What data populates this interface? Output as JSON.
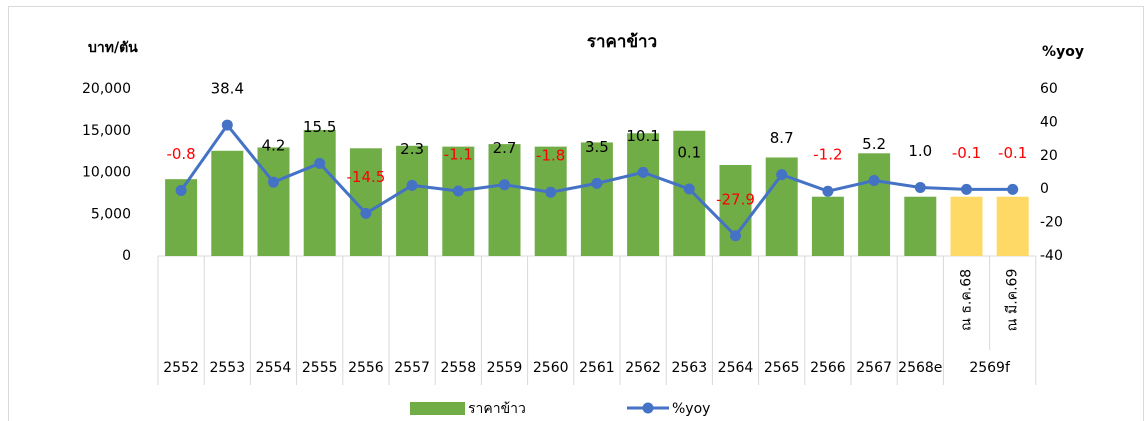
{
  "chart_data": {
    "type": "bar-line",
    "title": "ราคาข้าว",
    "y_label": "บาท/ตัน",
    "y2_label": "%yoy",
    "categories": [
      "2552",
      "2553",
      "2554",
      "2555",
      "2556",
      "2557",
      "2558",
      "2559",
      "2560",
      "2561",
      "2562",
      "2563",
      "2564",
      "2565",
      "2566",
      "2567",
      "2568e",
      "2569f",
      null
    ],
    "inner_categories": [
      null,
      null,
      null,
      null,
      null,
      null,
      null,
      null,
      null,
      null,
      null,
      null,
      null,
      null,
      null,
      null,
      null,
      "ณ ธ.ค.68",
      "ณ มี.ค.69"
    ],
    "ylim": [
      0,
      20000
    ],
    "yticks": [
      0,
      {
        "value": 5000,
        "label": "5,000"
      },
      {
        "value": 10000,
        "label": "10,000"
      },
      {
        "value": 15000,
        "label": "15,000"
      },
      {
        "value": 20000,
        "label": "20,000"
      }
    ],
    "y2lim": [
      -40,
      60
    ],
    "y2ticks": [
      -40,
      -20,
      0,
      20,
      40,
      60
    ],
    "legend": "bottom",
    "series": [
      {
        "name": "ราคาข้าว",
        "type": "bar",
        "color": "#70ad47",
        "colors": [
          "#70ad47",
          "#70ad47",
          "#70ad47",
          "#70ad47",
          "#70ad47",
          "#70ad47",
          "#70ad47",
          "#70ad47",
          "#70ad47",
          "#70ad47",
          "#70ad47",
          "#70ad47",
          "#70ad47",
          "#70ad47",
          "#70ad47",
          "#70ad47",
          "#70ad47",
          "#ffd966",
          "#ffd966"
        ],
        "values": [
          9200,
          12600,
          13000,
          15100,
          12900,
          13200,
          13100,
          13400,
          13100,
          13600,
          14700,
          15000,
          10900,
          11800,
          7100,
          12300,
          7100,
          7100,
          7100
        ]
      },
      {
        "name": "%yoy",
        "type": "line",
        "axis": "y2",
        "color": "#4472c4",
        "values": [
          -0.8,
          38.4,
          4.2,
          15.5,
          -14.5,
          2.3,
          -1.1,
          2.7,
          -1.8,
          3.5,
          10.1,
          0.1,
          -27.9,
          8.7,
          -1.2,
          5.2,
          1.0,
          -0.1,
          -0.1
        ],
        "value_labels": [
          "-0.8",
          "38.4",
          "4.2",
          "15.5",
          "-14.5",
          "2.3",
          "-1.1",
          "2.7",
          "-1.8",
          "3.5",
          "10.1",
          "0.1",
          "-27.9",
          "8.7",
          "-1.2",
          "5.2",
          "1.0",
          "-0.1",
          "-0.1"
        ]
      }
    ]
  }
}
